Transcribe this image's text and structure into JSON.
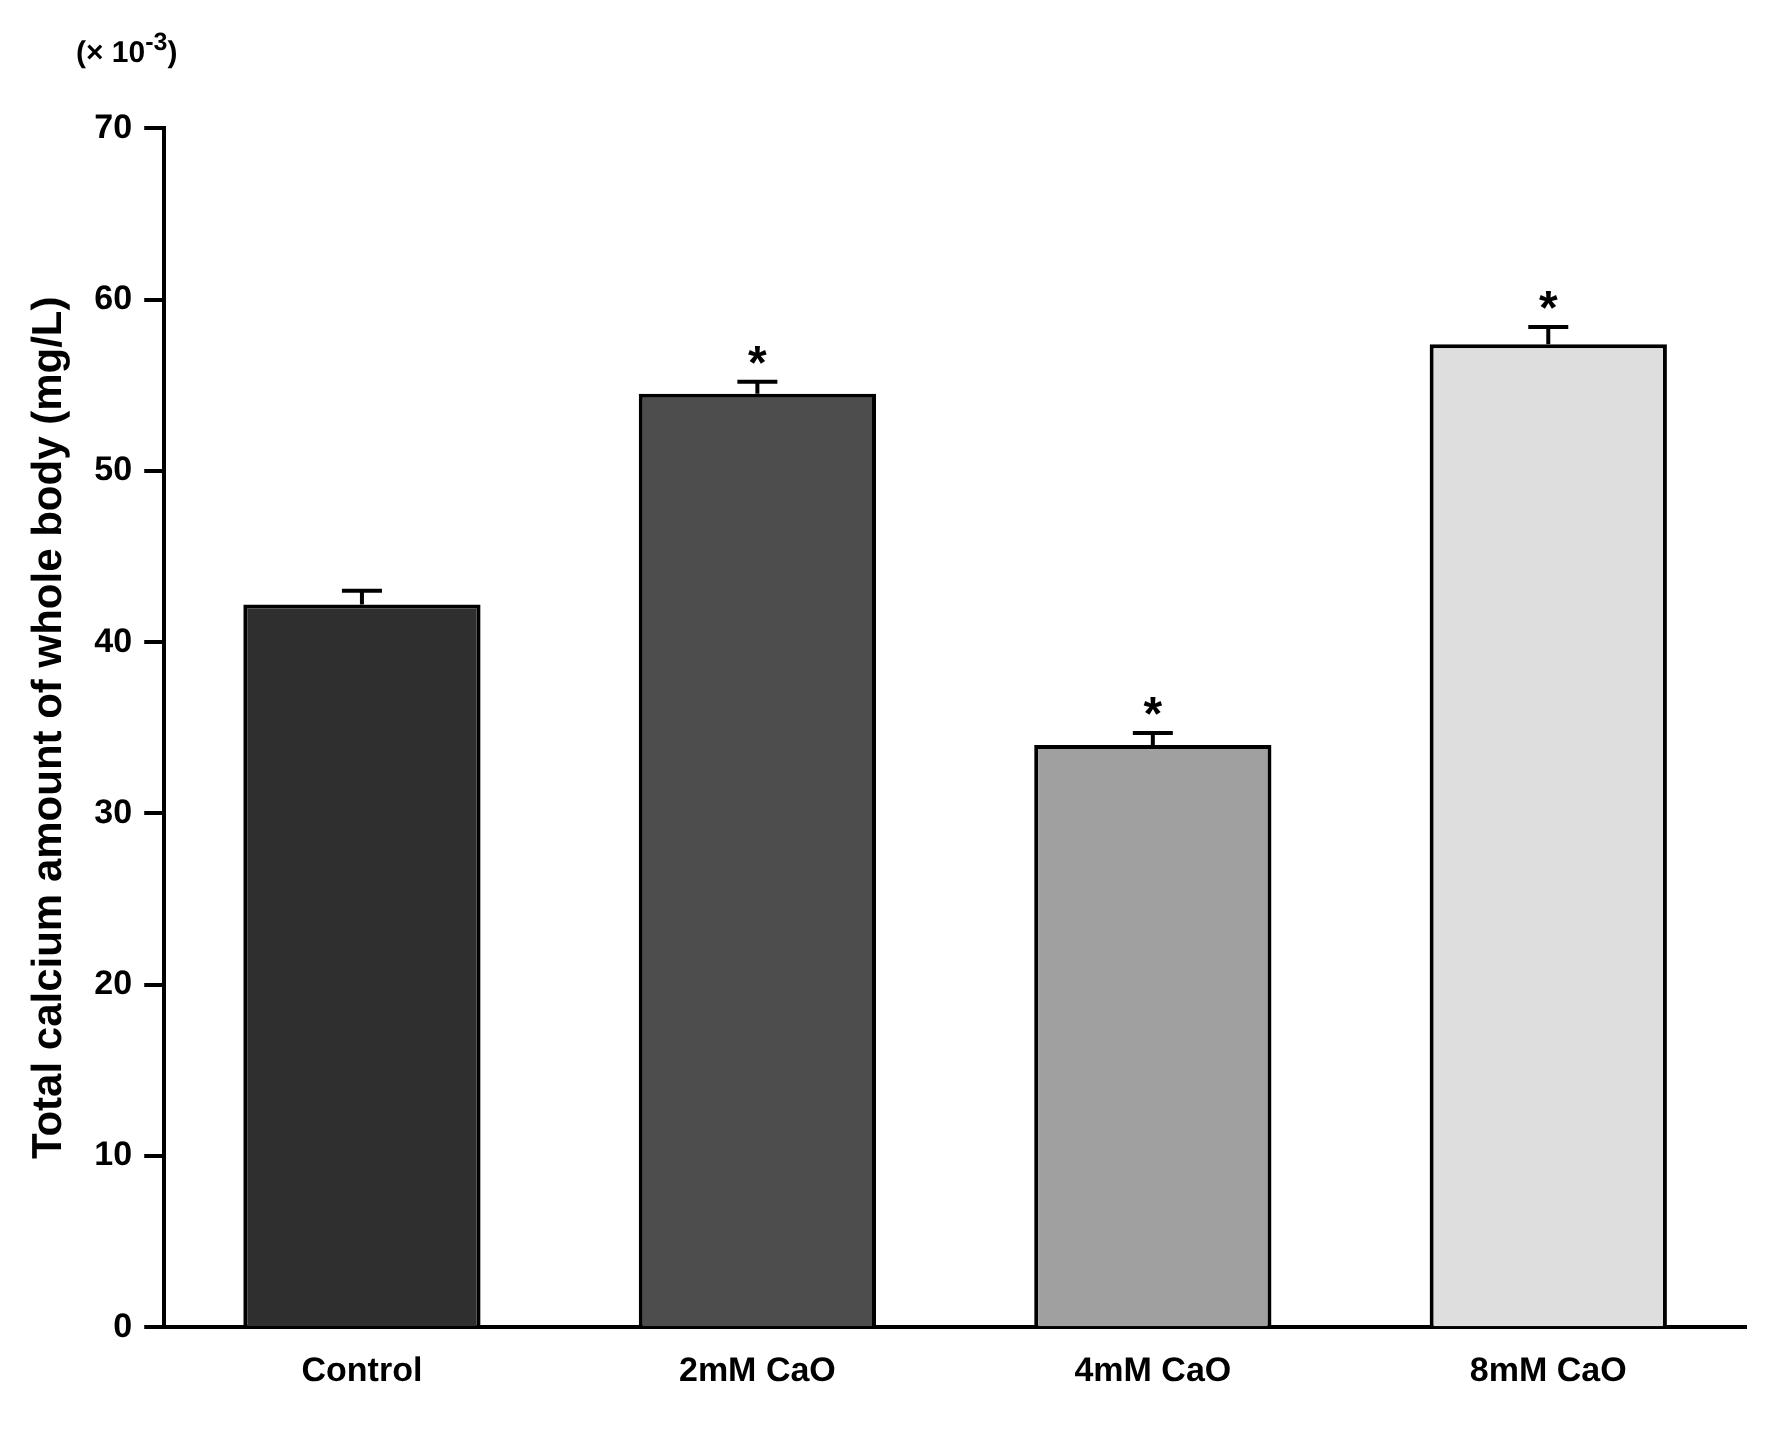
{
  "chart_data": {
    "type": "bar",
    "ylabel": "Total calcium amount of whole body (mg/L)",
    "categories": [
      "Control",
      "2mM CaO",
      "4mM CaO",
      "8mM CaO"
    ],
    "values": [
      42.2,
      54.5,
      34.0,
      57.4
    ],
    "colors": [
      "#2f2f2f",
      "#4d4d4d",
      "#a0a0a0",
      "#dedede"
    ],
    "errors": [
      0.8,
      0.7,
      0.7,
      1.0
    ],
    "ylim": [
      0,
      70
    ],
    "yticks": [
      0,
      10,
      20,
      30,
      40,
      50,
      60,
      70
    ],
    "grid": false,
    "legend": false,
    "annotations": [
      "(× 10$^{-3}$)",
      {
        "text": "*",
        "x": "2mM CaO",
        "y": 55.2
      },
      {
        "text": "*",
        "x": "4mM CaO",
        "y": 34.7
      },
      {
        "text": "*",
        "x": "8mM CaO",
        "y": 58.4
      }
    ]
  }
}
